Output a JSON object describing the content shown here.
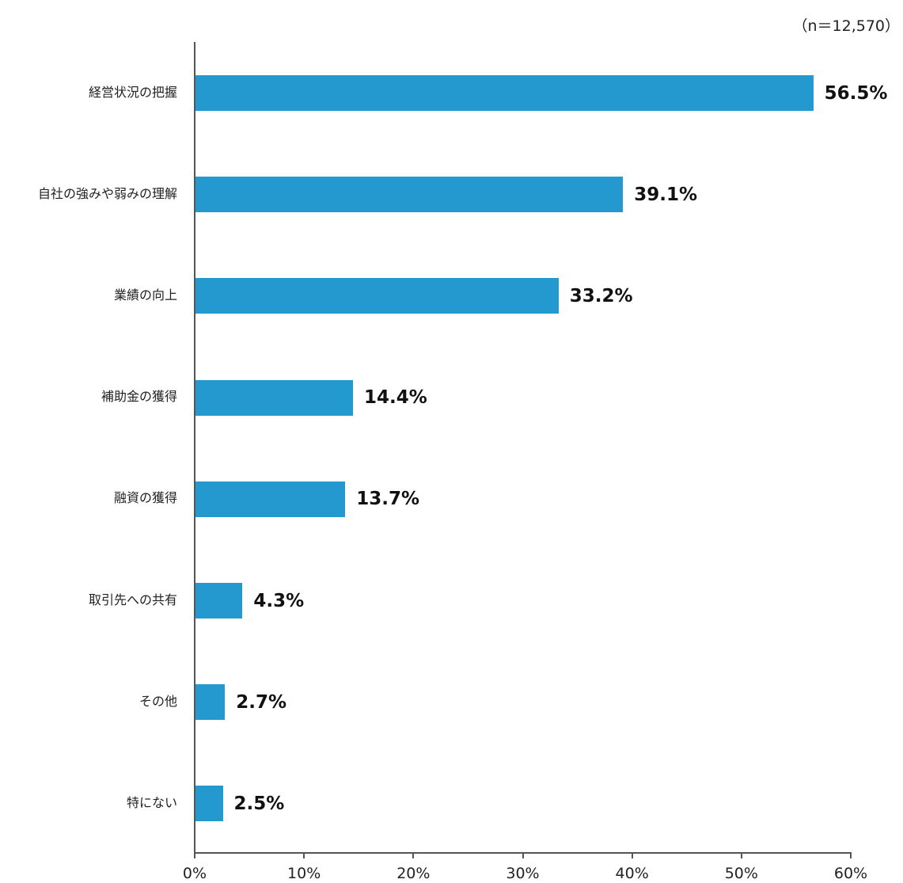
{
  "note": "（n＝12,570）",
  "chart_data": {
    "type": "bar",
    "orientation": "horizontal",
    "title": "",
    "sample_size_note": "（n＝12,570）",
    "categories": [
      "経営状況の把握",
      "自社の強みや弱みの理解",
      "業績の向上",
      "補助金の獲得",
      "融資の獲得",
      "取引先への共有",
      "その他",
      "特にない"
    ],
    "values": [
      56.5,
      39.1,
      33.2,
      14.4,
      13.7,
      4.3,
      2.7,
      2.5
    ],
    "value_labels": [
      "56.5%",
      "39.1%",
      "33.2%",
      "14.4%",
      "13.7%",
      "4.3%",
      "2.7%",
      "2.5%"
    ],
    "xlabel": "",
    "ylabel": "",
    "xlim": [
      0,
      60
    ],
    "x_ticks": [
      "0%",
      "10%",
      "20%",
      "30%",
      "40%",
      "50%",
      "60%"
    ],
    "grid": false,
    "legend": null,
    "bar_color": "#2399D0"
  }
}
